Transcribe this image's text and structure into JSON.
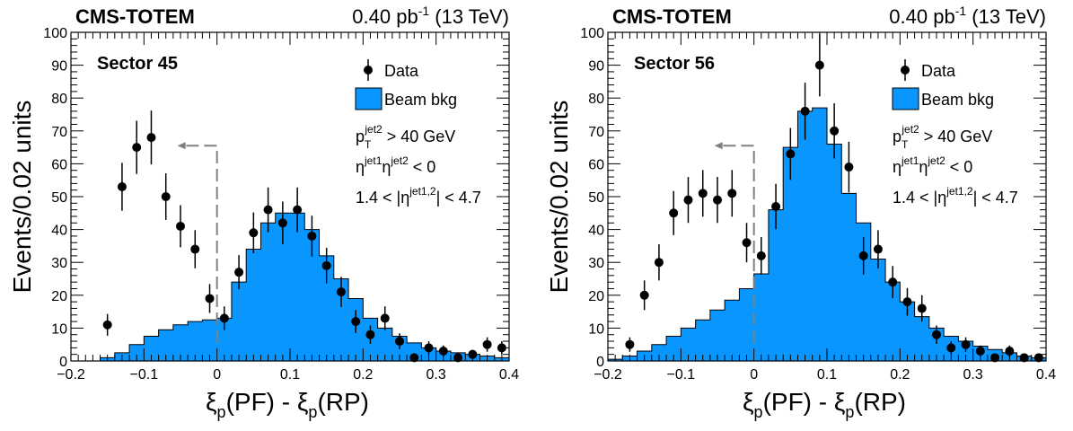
{
  "chart_data": [
    {
      "type": "bar",
      "header_left": "CMS-TOTEM",
      "header_right_base": "0.40 pb",
      "header_right_sup": "-1",
      "header_right_tail": " (13 TeV)",
      "panel_label": "Sector 45",
      "ylabel": "Events/0.02 units",
      "xlabel_parts": [
        "ξ",
        "p",
        "(PF) - ",
        "ξ",
        "p",
        "(RP)"
      ],
      "xlim": [
        -0.2,
        0.4
      ],
      "ylim": [
        0,
        100
      ],
      "x_ticks": [
        "−0.2",
        "−0.1",
        "0",
        "0.1",
        "0.2",
        "0.3",
        "0.4"
      ],
      "y_ticks": [
        "0",
        "10",
        "20",
        "30",
        "40",
        "50",
        "60",
        "70",
        "80",
        "90",
        "100"
      ],
      "legend": {
        "data": "Data",
        "bkg": "Beam bkg",
        "position": "top-right"
      },
      "cuts": {
        "c1": {
          "base": "p",
          "sub": "T",
          "sup": "jet2",
          "tail": " > 40 GeV"
        },
        "c2": {
          "base1": "η",
          "sup1": "jet1",
          "base2": "η",
          "sup2": "jet2",
          "tail": " < 0"
        },
        "c3": {
          "head": "1.4 < |η",
          "sup": "jet1,2",
          "tail": "| < 4.7"
        }
      },
      "cut_line": {
        "x": 0,
        "top": 65.5
      },
      "colors": {
        "bkg_fill": "#0a96ff",
        "bkg_edge": "#000000",
        "data": "#000000",
        "cut_line": "#808080"
      },
      "beam_bkg": {
        "bin_edges": [
          -0.2,
          -0.18,
          -0.16,
          -0.14,
          -0.12,
          -0.1,
          -0.08,
          -0.06,
          -0.04,
          -0.02,
          0,
          0.02,
          0.04,
          0.06,
          0.08,
          0.1,
          0.12,
          0.14,
          0.16,
          0.18,
          0.2,
          0.22,
          0.24,
          0.26,
          0.28,
          0.3,
          0.32,
          0.34,
          0.36,
          0.38,
          0.4
        ],
        "values": [
          0,
          0,
          1,
          2.5,
          5,
          7.5,
          9.5,
          11,
          12,
          12.5,
          13,
          24,
          34,
          42,
          45,
          45,
          40,
          32,
          25,
          19,
          13,
          10,
          7.5,
          5.5,
          4,
          3,
          2.5,
          2,
          1.5,
          1
        ]
      },
      "data_points": {
        "x": [
          -0.15,
          -0.13,
          -0.11,
          -0.09,
          -0.07,
          -0.05,
          -0.03,
          -0.01,
          0.01,
          0.03,
          0.05,
          0.07,
          0.09,
          0.11,
          0.13,
          0.15,
          0.17,
          0.19,
          0.21,
          0.23,
          0.25,
          0.27,
          0.29,
          0.31,
          0.33,
          0.35,
          0.37,
          0.39
        ],
        "y": [
          11,
          53,
          65,
          68,
          50,
          41,
          34,
          19,
          13,
          27,
          39,
          46,
          42,
          46,
          38,
          29,
          21,
          12,
          8,
          13,
          6,
          1,
          4,
          3,
          1,
          2,
          5,
          4
        ],
        "err": [
          3.3,
          7.3,
          8.1,
          8.2,
          7.1,
          6.4,
          5.8,
          4.4,
          3.6,
          5.2,
          6.2,
          6.8,
          6.5,
          6.8,
          6.2,
          5.4,
          4.6,
          3.5,
          2.8,
          3.6,
          2.4,
          1,
          2,
          1.7,
          1,
          1.4,
          2.2,
          2
        ]
      }
    },
    {
      "type": "bar",
      "header_left": "CMS-TOTEM",
      "header_right_base": "0.40 pb",
      "header_right_sup": "-1",
      "header_right_tail": " (13 TeV)",
      "panel_label": "Sector 56",
      "ylabel": "Events/0.02 units",
      "xlabel_parts": [
        "ξ",
        "p",
        "(PF) - ",
        "ξ",
        "p",
        "(RP)"
      ],
      "xlim": [
        -0.2,
        0.4
      ],
      "ylim": [
        0,
        100
      ],
      "x_ticks": [
        "−0.2",
        "−0.1",
        "0",
        "0.1",
        "0.2",
        "0.3",
        "0.4"
      ],
      "y_ticks": [
        "0",
        "10",
        "20",
        "30",
        "40",
        "50",
        "60",
        "70",
        "80",
        "90",
        "100"
      ],
      "legend": {
        "data": "Data",
        "bkg": "Beam bkg",
        "position": "top-right"
      },
      "cuts": {
        "c1": {
          "base": "p",
          "sub": "T",
          "sup": "jet2",
          "tail": " > 40 GeV"
        },
        "c2": {
          "base1": "η",
          "sup1": "jet1",
          "base2": "η",
          "sup2": "jet2",
          "tail": " < 0"
        },
        "c3": {
          "head": "1.4 < |η",
          "sup": "jet1,2",
          "tail": "| < 4.7"
        }
      },
      "cut_line": {
        "x": 0,
        "top": 65.5
      },
      "colors": {
        "bkg_fill": "#0a96ff",
        "bkg_edge": "#000000",
        "data": "#000000",
        "cut_line": "#808080"
      },
      "beam_bkg": {
        "bin_edges": [
          -0.2,
          -0.18,
          -0.16,
          -0.14,
          -0.12,
          -0.1,
          -0.08,
          -0.06,
          -0.04,
          -0.02,
          0,
          0.02,
          0.04,
          0.06,
          0.08,
          0.1,
          0.12,
          0.14,
          0.16,
          0.18,
          0.2,
          0.22,
          0.24,
          0.26,
          0.28,
          0.3,
          0.32,
          0.34,
          0.36,
          0.38,
          0.4
        ],
        "values": [
          0.5,
          1.5,
          3,
          5,
          7.5,
          10,
          12.5,
          15.5,
          18.5,
          22,
          26.5,
          46,
          65,
          76,
          77,
          66,
          51,
          42,
          31,
          24,
          18,
          13.5,
          10,
          7.5,
          6,
          4.5,
          3.5,
          2.5,
          1.5,
          1
        ]
      },
      "data_points": {
        "x": [
          -0.17,
          -0.15,
          -0.13,
          -0.11,
          -0.09,
          -0.07,
          -0.05,
          -0.03,
          -0.01,
          0.01,
          0.03,
          0.05,
          0.07,
          0.09,
          0.11,
          0.13,
          0.15,
          0.17,
          0.19,
          0.21,
          0.23,
          0.25,
          0.27,
          0.29,
          0.31,
          0.33,
          0.35,
          0.37,
          0.39
        ],
        "y": [
          5,
          20,
          30,
          45,
          49,
          51,
          49,
          51,
          36,
          32,
          47,
          63,
          76,
          90,
          70,
          59,
          32,
          34,
          24,
          18,
          16,
          8,
          4,
          5,
          3,
          1,
          3,
          1,
          1
        ],
        "err": [
          2.2,
          4.5,
          5.5,
          6.7,
          7,
          7.1,
          7,
          7.1,
          6,
          5.7,
          6.9,
          7.9,
          8.7,
          9.5,
          8.4,
          7.7,
          5.7,
          5.8,
          4.9,
          4.2,
          4,
          2.8,
          2,
          2.2,
          1.7,
          1,
          1.7,
          1,
          1
        ]
      }
    }
  ]
}
